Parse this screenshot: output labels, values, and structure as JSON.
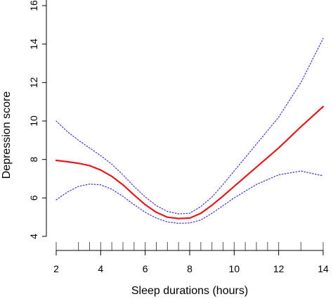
{
  "chart_data": {
    "type": "line",
    "xlabel": "Sleep durations (hours)",
    "ylabel": "Depression score",
    "xlim": [
      2,
      14
    ],
    "ylim": [
      4,
      16
    ],
    "x_ticks": [
      2,
      4,
      6,
      8,
      10,
      12,
      14
    ],
    "y_ticks": [
      4,
      6,
      8,
      10,
      12,
      14,
      16
    ],
    "rug": [
      2,
      3,
      3.5,
      4,
      4.5,
      5,
      5.5,
      6,
      6.5,
      7,
      7.5,
      8,
      8.5,
      9,
      9.5,
      10,
      10.5,
      11,
      11.5,
      12,
      13,
      14
    ],
    "series": [
      {
        "role": "estimate",
        "color": "#e31a1c",
        "style": "solid",
        "x": [
          2,
          2.5,
          3,
          3.5,
          4,
          4.5,
          5,
          5.5,
          6,
          6.5,
          7,
          7.5,
          8,
          8.5,
          9,
          9.5,
          10,
          11,
          12,
          13,
          14
        ],
        "y": [
          7.95,
          7.88,
          7.8,
          7.68,
          7.45,
          7.12,
          6.68,
          6.15,
          5.65,
          5.25,
          5.0,
          4.93,
          4.95,
          5.2,
          5.62,
          6.1,
          6.6,
          7.6,
          8.6,
          9.7,
          10.75
        ]
      },
      {
        "role": "upper",
        "color": "#3333cc",
        "style": "dotted",
        "x": [
          2,
          2.5,
          3,
          3.5,
          4,
          4.5,
          5,
          5.5,
          6,
          6.5,
          7,
          7.5,
          8,
          8.5,
          9,
          9.5,
          10,
          11,
          12,
          13,
          14
        ],
        "y": [
          10.0,
          9.45,
          9.0,
          8.6,
          8.2,
          7.75,
          7.2,
          6.6,
          6.05,
          5.6,
          5.3,
          5.17,
          5.2,
          5.55,
          6.05,
          6.7,
          7.4,
          8.8,
          10.2,
          12.0,
          14.3
        ]
      },
      {
        "role": "lower",
        "color": "#3333cc",
        "style": "dotted",
        "x": [
          2,
          2.5,
          3,
          3.5,
          4,
          4.5,
          5,
          5.5,
          6,
          6.5,
          7,
          7.5,
          8,
          8.5,
          9,
          9.5,
          10,
          11,
          12,
          13,
          14
        ],
        "y": [
          5.9,
          6.3,
          6.6,
          6.72,
          6.68,
          6.45,
          6.08,
          5.65,
          5.25,
          4.95,
          4.75,
          4.68,
          4.7,
          4.85,
          5.2,
          5.6,
          6.0,
          6.7,
          7.2,
          7.4,
          7.15
        ]
      }
    ]
  }
}
